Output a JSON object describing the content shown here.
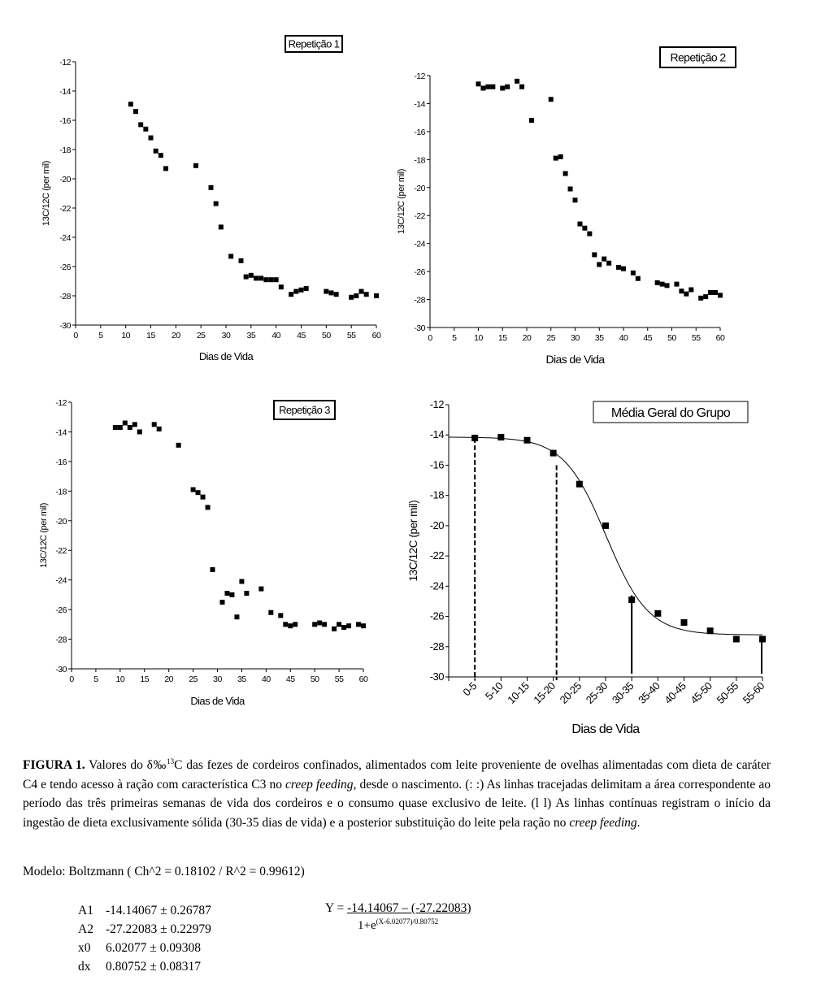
{
  "chart_data": [
    {
      "type": "scatter",
      "title": "Repetição 1",
      "xlabel": "Dias de Vida",
      "ylabel": "13C/12C (per mil)",
      "xlim": [
        0,
        60
      ],
      "ylim": [
        -30,
        -12
      ],
      "xticks": [
        0,
        5,
        10,
        15,
        20,
        25,
        30,
        35,
        40,
        45,
        50,
        55,
        60
      ],
      "yticks": [
        -12,
        -14,
        -16,
        -18,
        -20,
        -22,
        -24,
        -26,
        -28,
        -30
      ],
      "grid": false,
      "points": [
        [
          11,
          -14.9
        ],
        [
          12,
          -15.4
        ],
        [
          13,
          -16.3
        ],
        [
          14,
          -16.6
        ],
        [
          15,
          -17.2
        ],
        [
          16,
          -18.1
        ],
        [
          17,
          -18.4
        ],
        [
          18,
          -19.3
        ],
        [
          24,
          -19.1
        ],
        [
          27,
          -20.6
        ],
        [
          28,
          -21.7
        ],
        [
          29,
          -23.3
        ],
        [
          31,
          -25.3
        ],
        [
          33,
          -25.6
        ],
        [
          34,
          -26.7
        ],
        [
          35,
          -26.6
        ],
        [
          36,
          -26.8
        ],
        [
          37,
          -26.8
        ],
        [
          38,
          -26.9
        ],
        [
          39,
          -26.9
        ],
        [
          40,
          -26.9
        ],
        [
          41,
          -27.4
        ],
        [
          43,
          -27.9
        ],
        [
          44,
          -27.7
        ],
        [
          45,
          -27.6
        ],
        [
          46,
          -27.5
        ],
        [
          50,
          -27.7
        ],
        [
          51,
          -27.8
        ],
        [
          52,
          -27.9
        ],
        [
          55,
          -28.1
        ],
        [
          56,
          -28.0
        ],
        [
          57,
          -27.7
        ],
        [
          58,
          -27.9
        ],
        [
          60,
          -28.0
        ]
      ]
    },
    {
      "type": "scatter",
      "title": "Repetição 2",
      "xlabel": "Dias de Vida",
      "ylabel": "13C/12C (per mil)",
      "xlim": [
        0,
        60
      ],
      "ylim": [
        -30,
        -12
      ],
      "xticks": [
        0,
        5,
        10,
        15,
        20,
        25,
        30,
        35,
        40,
        45,
        50,
        55,
        60
      ],
      "yticks": [
        -12,
        -14,
        -16,
        -18,
        -20,
        -22,
        -24,
        -26,
        -28,
        -30
      ],
      "grid": false,
      "points": [
        [
          10,
          -12.6
        ],
        [
          11,
          -12.9
        ],
        [
          12,
          -12.8
        ],
        [
          13,
          -12.8
        ],
        [
          15,
          -12.9
        ],
        [
          16,
          -12.8
        ],
        [
          18,
          -12.4
        ],
        [
          19,
          -12.8
        ],
        [
          21,
          -15.2
        ],
        [
          25,
          -13.7
        ],
        [
          26,
          -17.9
        ],
        [
          27,
          -17.8
        ],
        [
          28,
          -19.0
        ],
        [
          29,
          -20.1
        ],
        [
          30,
          -20.9
        ],
        [
          31,
          -22.6
        ],
        [
          32,
          -22.9
        ],
        [
          33,
          -23.3
        ],
        [
          34,
          -24.8
        ],
        [
          35,
          -25.5
        ],
        [
          36,
          -25.1
        ],
        [
          37,
          -25.4
        ],
        [
          39,
          -25.7
        ],
        [
          40,
          -25.8
        ],
        [
          42,
          -26.1
        ],
        [
          43,
          -26.5
        ],
        [
          47,
          -26.8
        ],
        [
          48,
          -26.9
        ],
        [
          49,
          -27.0
        ],
        [
          51,
          -26.9
        ],
        [
          52,
          -27.4
        ],
        [
          53,
          -27.6
        ],
        [
          54,
          -27.3
        ],
        [
          56,
          -27.9
        ],
        [
          57,
          -27.8
        ],
        [
          58,
          -27.5
        ],
        [
          59,
          -27.5
        ],
        [
          60,
          -27.7
        ]
      ]
    },
    {
      "type": "scatter",
      "title": "Repetição 3",
      "xlabel": "Dias de Vida",
      "ylabel": "13C/12C (per mil)",
      "xlim": [
        0,
        60
      ],
      "ylim": [
        -30,
        -12
      ],
      "xticks": [
        0,
        5,
        10,
        15,
        20,
        25,
        30,
        35,
        40,
        45,
        50,
        55,
        60
      ],
      "yticks": [
        -12,
        -14,
        -16,
        -18,
        -20,
        -22,
        -24,
        -26,
        -28,
        -30
      ],
      "grid": false,
      "points": [
        [
          9,
          -13.7
        ],
        [
          10,
          -13.7
        ],
        [
          11,
          -13.4
        ],
        [
          12,
          -13.7
        ],
        [
          13,
          -13.5
        ],
        [
          14,
          -14.0
        ],
        [
          17,
          -13.5
        ],
        [
          18,
          -13.8
        ],
        [
          22,
          -14.9
        ],
        [
          25,
          -17.9
        ],
        [
          26,
          -18.1
        ],
        [
          27,
          -18.4
        ],
        [
          28,
          -19.1
        ],
        [
          29,
          -23.3
        ],
        [
          31,
          -25.5
        ],
        [
          32,
          -24.9
        ],
        [
          33,
          -25.0
        ],
        [
          34,
          -26.5
        ],
        [
          35,
          -24.1
        ],
        [
          36,
          -24.9
        ],
        [
          39,
          -24.6
        ],
        [
          41,
          -26.2
        ],
        [
          43,
          -26.4
        ],
        [
          44,
          -27.0
        ],
        [
          45,
          -27.1
        ],
        [
          46,
          -27.0
        ],
        [
          50,
          -27.0
        ],
        [
          51,
          -26.9
        ],
        [
          52,
          -27.0
        ],
        [
          54,
          -27.3
        ],
        [
          55,
          -27.0
        ],
        [
          56,
          -27.2
        ],
        [
          57,
          -27.1
        ],
        [
          59,
          -27.0
        ],
        [
          60,
          -27.1
        ]
      ]
    },
    {
      "type": "scatter",
      "title": "Média Geral do Grupo",
      "xlabel": "Dias de Vida",
      "ylabel": "13C/12C (per mil)",
      "ylim": [
        -30,
        -12
      ],
      "yticks": [
        -12,
        -14,
        -16,
        -18,
        -20,
        -22,
        -24,
        -26,
        -28,
        -30
      ],
      "grid": false,
      "categories": [
        "0-5",
        "5-10",
        "10-15",
        "15-20",
        "20-25",
        "25-30",
        "30-35",
        "35-40",
        "40-45",
        "45-50",
        "50-55",
        "55-60"
      ],
      "values": [
        -14.2,
        -14.15,
        -14.35,
        -15.2,
        -17.25,
        -20.0,
        -24.9,
        -25.8,
        -26.4,
        -26.95,
        -27.5,
        -27.5
      ],
      "fit": {
        "model": "Boltzmann",
        "A1": -14.14067,
        "A2": -27.22083,
        "x0": 6.02077,
        "dx": 0.80752
      },
      "reference_lines": [
        {
          "at": "0-5",
          "style": "dashed"
        },
        {
          "at": "15-20",
          "style": "dashed"
        },
        {
          "at": "30-35",
          "style": "solid"
        },
        {
          "at": "55-60",
          "style": "solid"
        }
      ]
    }
  ],
  "caption": {
    "label": "FIGURA 1.",
    "t1": " Valores do δ‰",
    "sup": "13",
    "t2": "C das fezes de cordeiros confinados, alimentados com leite proveniente de ovelhas alimentadas com dieta de caráter C4 e tendo acesso à ração com característica C3 no ",
    "i1": "creep feeding",
    "t3": ", desde o nascimento. (: :) As linhas tracejadas delimitam a área correspondente ao período das três primeiras semanas de vida dos cordeiros e o consumo quase exclusivo de leite. (l l) As linhas contínuas registram o início da ingestão de dieta exclusivamente sólida (30-35 dias de vida) e a posterior substituição do leite pela ração no ",
    "i2": "creep feeding",
    "t4": "."
  },
  "model": "Modelo: Boltzmann ( Ch^2 = 0.18102 / R^2 = 0.99612)",
  "params": [
    {
      "name": "A1",
      "value": "-14.14067 ± 0.26787"
    },
    {
      "name": "A2",
      "value": "-27.22083 ± 0.22979"
    },
    {
      "name": "x0",
      "value": "6.02077 ± 0.09308"
    },
    {
      "name": "dx",
      "value": "0.80752 ± 0.08317"
    }
  ],
  "formula": {
    "lhs": "Y = ",
    "numerator": "-14.14067 – (-27.22083)",
    "den_base": "1+e",
    "den_exp": "(X-6.02077)/0.80752"
  }
}
